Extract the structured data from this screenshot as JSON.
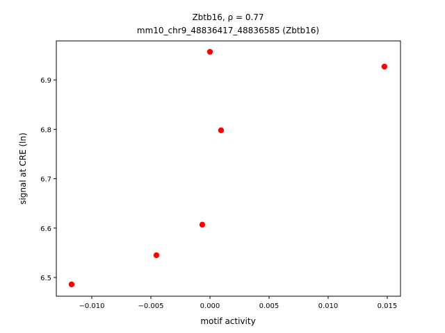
{
  "chart_data": {
    "type": "scatter",
    "title": [
      "Zbtb16, ρ = 0.77",
      "mm10_chr9_48836417_48836585 (Zbtb16)"
    ],
    "xlabel": "motif activity",
    "ylabel": "signal at CRE (ln)",
    "x": [
      -0.01171,
      -0.00453,
      -0.00065,
      0.00094,
      0.0,
      0.01476
    ],
    "values": [
      6.486,
      6.545,
      6.607,
      6.798,
      6.957,
      6.927
    ],
    "color": "#ff0000",
    "xlim": [
      -0.013,
      0.01612
    ],
    "ylim": [
      6.462,
      6.979
    ],
    "xticks": [
      {
        "value": -0.01,
        "label": "−0.010"
      },
      {
        "value": -0.005,
        "label": "−0.005"
      },
      {
        "value": 0,
        "label": "0.000"
      },
      {
        "value": 0.005,
        "label": "0.005"
      },
      {
        "value": 0.01,
        "label": "0.010"
      },
      {
        "value": 0.015,
        "label": "0.015"
      }
    ],
    "yticks": [
      6.5,
      6.6,
      6.7,
      6.8,
      6.9
    ],
    "grid": false
  }
}
